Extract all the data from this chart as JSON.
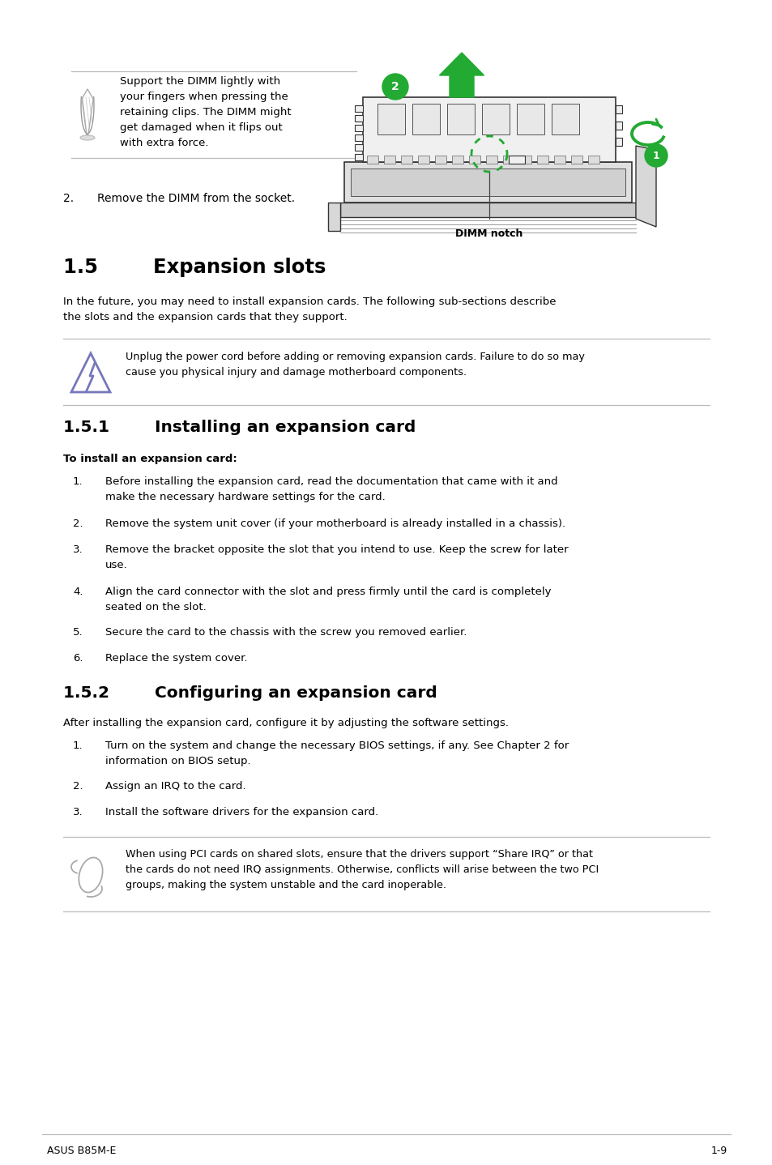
{
  "bg_color": "#ffffff",
  "footer_text_left": "ASUS B85M-E",
  "footer_text_right": "1-9",
  "section_title": "1.5        Expansion slots",
  "section_intro": "In the future, you may need to install expansion cards. The following sub-sections describe\nthe slots and the expansion cards that they support.",
  "warning_text": "Unplug the power cord before adding or removing expansion cards. Failure to do so may\ncause you physical injury and damage motherboard components.",
  "sub1_title": "1.5.1        Installing an expansion card",
  "sub1_bold": "To install an expansion card:",
  "sub1_items": [
    "Before installing the expansion card, read the documentation that came with it and\nmake the necessary hardware settings for the card.",
    "Remove the system unit cover (if your motherboard is already installed in a chassis).",
    "Remove the bracket opposite the slot that you intend to use. Keep the screw for later\nuse.",
    "Align the card connector with the slot and press firmly until the card is completely\nseated on the slot.",
    "Secure the card to the chassis with the screw you removed earlier.",
    "Replace the system cover."
  ],
  "sub2_title": "1.5.2        Configuring an expansion card",
  "sub2_intro": "After installing the expansion card, configure it by adjusting the software settings.",
  "sub2_items": [
    "Turn on the system and change the necessary BIOS settings, if any. See Chapter 2 for\ninformation on BIOS setup.",
    "Assign an IRQ to the card.",
    "Install the software drivers for the expansion card."
  ],
  "note_text": "When using PCI cards on shared slots, ensure that the drivers support “Share IRQ” or that\nthe cards do not need IRQ assignments. Otherwise, conflicts will arise between the two PCI\ngroups, making the system unstable and the card inoperable.",
  "top_note_text": "Support the DIMM lightly with\nyour fingers when pressing the\nretaining clips. The DIMM might\nget damaged when it flips out\nwith extra force.",
  "top_item2_num": "2.",
  "top_item2_text": "Remove the DIMM from the socket.",
  "dimm_notch_label": "DIMM notch",
  "green": "#22aa33",
  "line_color": "#bbbbbb",
  "icon_color": "#888888",
  "tri_color": "#7777bb"
}
